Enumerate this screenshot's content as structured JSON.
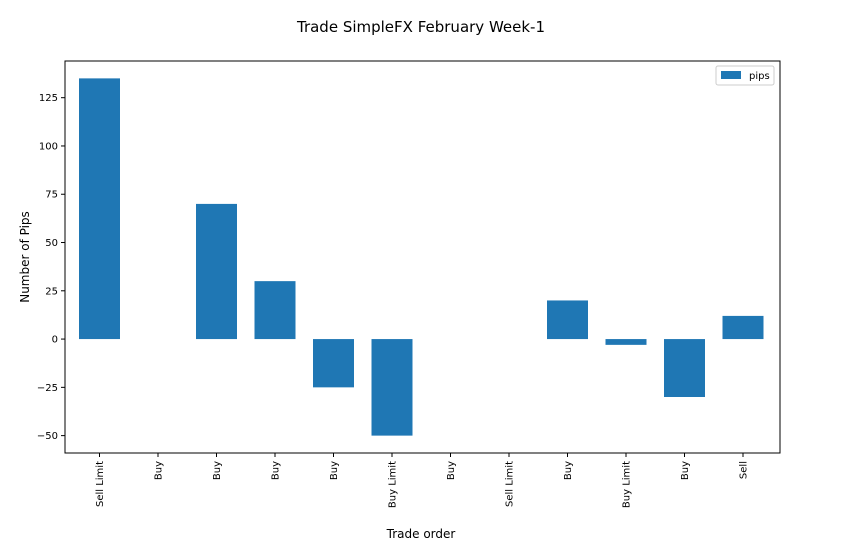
{
  "chart_data": {
    "type": "bar",
    "title": "Trade SimpleFX February Week-1",
    "xlabel": "Trade order",
    "ylabel": "Number of Pips",
    "categories": [
      "Sell Limit",
      "Buy",
      "Buy",
      "Buy",
      "Buy",
      "Buy Limit",
      "Buy",
      "Sell Limit",
      "Buy",
      "Buy Limit",
      "Buy",
      "Sell"
    ],
    "series": [
      {
        "name": "pips",
        "values": [
          135,
          0,
          70,
          30,
          -25,
          -50,
          0,
          0,
          20,
          -3,
          -30,
          12
        ]
      }
    ],
    "ylim": [
      -59,
      144
    ],
    "yticks": [
      -50,
      -25,
      0,
      25,
      50,
      75,
      100,
      125
    ],
    "ytick_labels": [
      "−50",
      "−25",
      "0",
      "25",
      "50",
      "75",
      "100",
      "125"
    ],
    "legend": "top-right",
    "grid": false,
    "bar_color": "#1f77b4"
  }
}
